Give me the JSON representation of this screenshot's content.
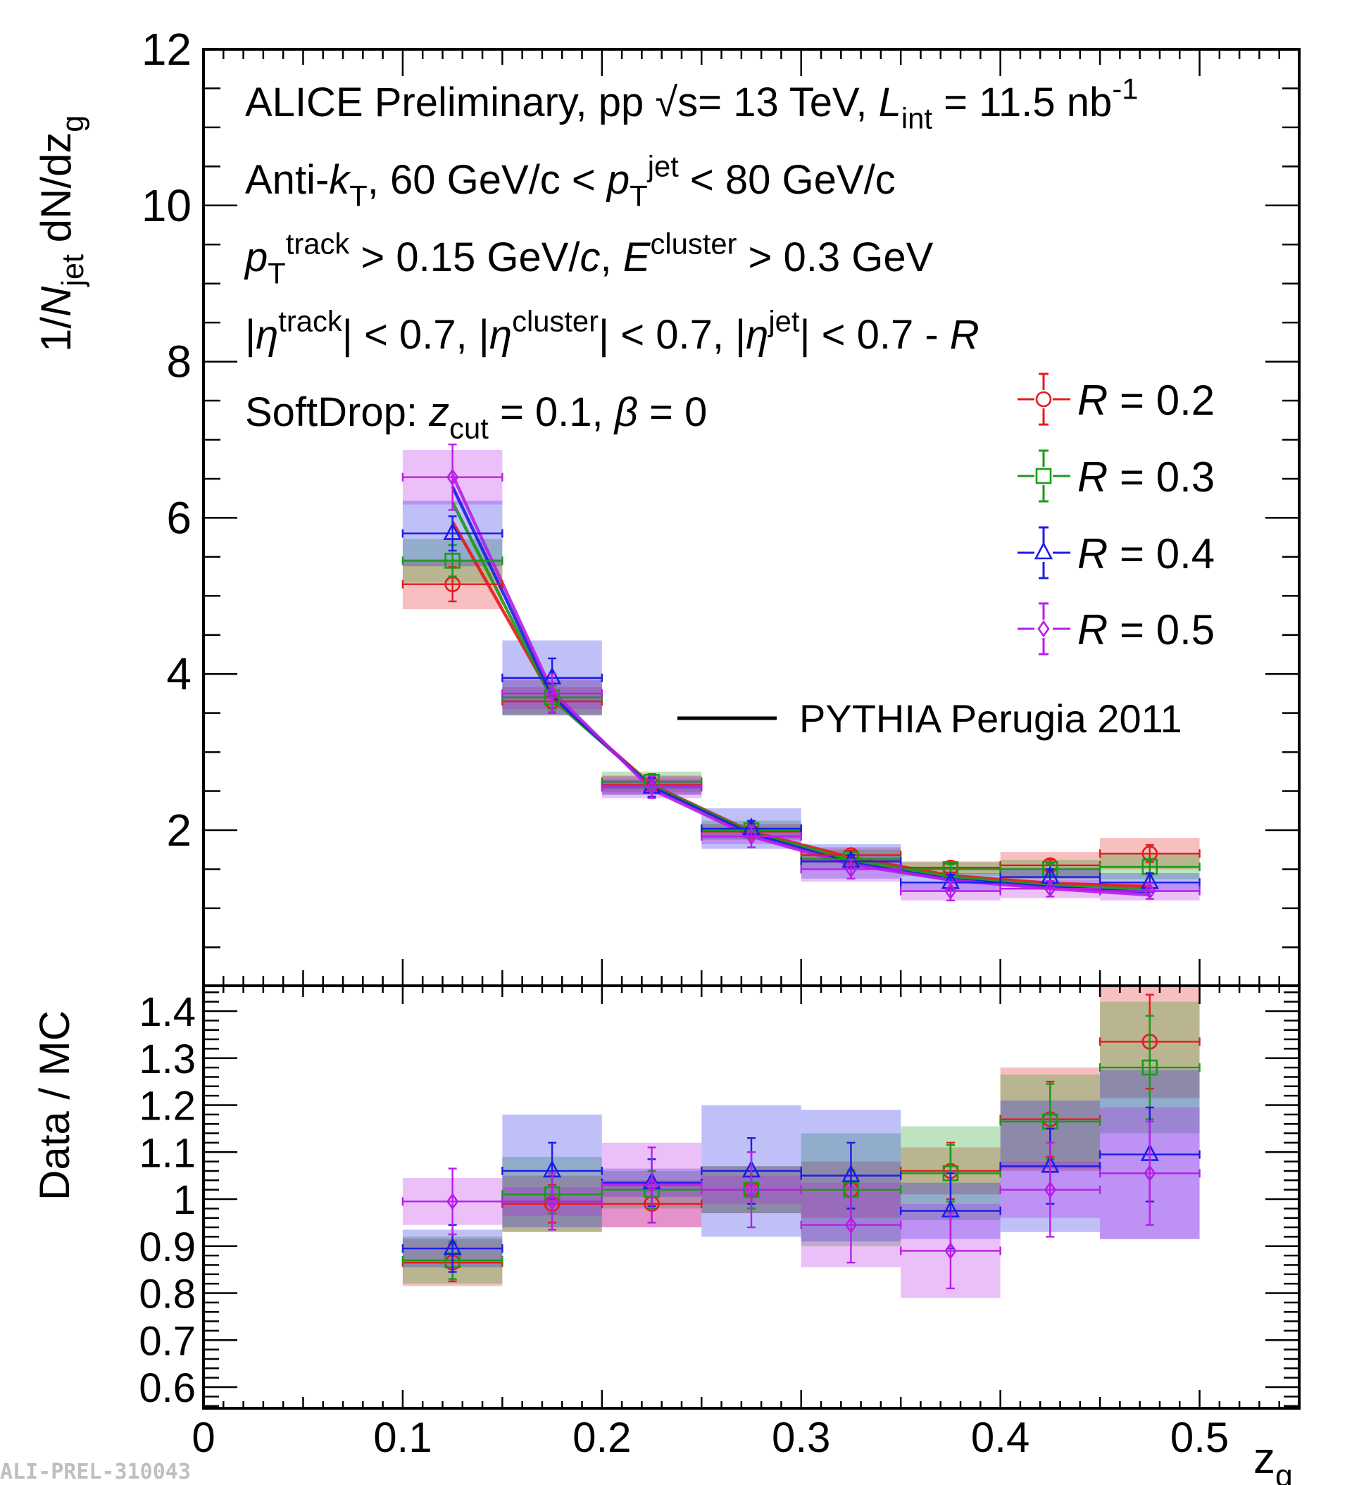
{
  "chart_data": {
    "type": "scatter",
    "title": "",
    "x": [
      0.125,
      0.175,
      0.225,
      0.275,
      0.325,
      0.375,
      0.425,
      0.475
    ],
    "bin_edges": [
      0.1,
      0.15,
      0.2,
      0.25,
      0.3,
      0.35,
      0.4,
      0.45,
      0.5
    ],
    "xlim": [
      0,
      0.55
    ],
    "xlabel_main": "z",
    "xlabel_sub": "g",
    "xticks": [
      "0",
      "0.1",
      "0.2",
      "0.3",
      "0.4",
      "0.5"
    ],
    "top_panel": {
      "ylabel": "1/N_jet dN/dz_g",
      "ylim": [
        0,
        12
      ],
      "yticks": [
        "2",
        "4",
        "6",
        "8",
        "10",
        "12"
      ],
      "annotations": [
        "ALICE Preliminary, pp √s= 13 TeV, L_int = 11.5 nb^-1",
        "Anti-k_T, 60 GeV/c < p_T^jet < 80 GeV/c",
        "p_T^track > 0.15 GeV/c, E^cluster > 0.3 GeV",
        "|η^track| < 0.7, |η^cluster| < 0.7, |η^jet| < 0.7 - R",
        "SoftDrop: z_cut = 0.1, β = 0"
      ],
      "series": [
        {
          "name": "R = 0.2",
          "color": "#e41a1c",
          "marker": "circle",
          "values": [
            5.15,
            3.65,
            2.58,
            1.98,
            1.68,
            1.52,
            1.55,
            1.7
          ],
          "stat_err": [
            0.22,
            0.14,
            0.1,
            0.07,
            0.06,
            0.06,
            0.07,
            0.11
          ],
          "sys_err": [
            0.32,
            0.18,
            0.12,
            0.1,
            0.1,
            0.08,
            0.17,
            0.2
          ],
          "pythia": [
            5.95,
            3.7,
            2.58,
            1.98,
            1.65,
            1.42,
            1.32,
            1.28
          ]
        },
        {
          "name": "R = 0.3",
          "color": "#1a9a1a",
          "marker": "square",
          "values": [
            5.45,
            3.7,
            2.62,
            2.0,
            1.63,
            1.5,
            1.5,
            1.53
          ],
          "stat_err": [
            0.2,
            0.15,
            0.1,
            0.08,
            0.06,
            0.06,
            0.07,
            0.1
          ],
          "sys_err": [
            0.28,
            0.22,
            0.13,
            0.12,
            0.12,
            0.09,
            0.12,
            0.16
          ],
          "pythia": [
            6.2,
            3.68,
            2.57,
            1.97,
            1.62,
            1.4,
            1.29,
            1.24
          ]
        },
        {
          "name": "R = 0.4",
          "color": "#1c1ce8",
          "marker": "triangle",
          "values": [
            5.8,
            3.95,
            2.55,
            2.02,
            1.6,
            1.33,
            1.4,
            1.33
          ],
          "stat_err": [
            0.22,
            0.25,
            0.12,
            0.1,
            0.08,
            0.1,
            0.1,
            0.12
          ],
          "sys_err": [
            0.42,
            0.48,
            0.1,
            0.26,
            0.22,
            0.12,
            0.12,
            0.12
          ],
          "pythia": [
            6.4,
            3.72,
            2.55,
            1.95,
            1.58,
            1.37,
            1.27,
            1.2
          ]
        },
        {
          "name": "R = 0.5",
          "color": "#b81ee8",
          "marker": "diamond",
          "values": [
            6.52,
            3.75,
            2.55,
            1.92,
            1.5,
            1.22,
            1.25,
            1.22
          ],
          "stat_err": [
            0.42,
            0.25,
            0.14,
            0.14,
            0.12,
            0.12,
            0.1,
            0.1
          ],
          "sys_err": [
            0.35,
            0.2,
            0.14,
            0.1,
            0.16,
            0.12,
            0.12,
            0.12
          ],
          "pythia": [
            6.55,
            3.78,
            2.52,
            1.92,
            1.56,
            1.36,
            1.25,
            1.17
          ]
        }
      ],
      "pythia_legend": "PYTHIA Perugia 2011"
    },
    "ratio_panel": {
      "ylabel": "Data / MC",
      "ylim": [
        0.53,
        1.45
      ],
      "yticks": [
        "0.6",
        "0.7",
        "0.8",
        "0.9",
        "1",
        "1.1",
        "1.2",
        "1.3",
        "1.4"
      ],
      "series": [
        {
          "name": "R = 0.2",
          "values": [
            0.865,
            0.99,
            0.99,
            1.02,
            1.02,
            1.06,
            1.17,
            1.335
          ],
          "stat_err": [
            0.04,
            0.04,
            0.04,
            0.04,
            0.04,
            0.06,
            0.08,
            0.1
          ],
          "sys_err": [
            0.05,
            0.06,
            0.05,
            0.05,
            0.06,
            0.05,
            0.11,
            0.12
          ]
        },
        {
          "name": "R = 0.3",
          "values": [
            0.87,
            1.01,
            1.02,
            1.02,
            1.02,
            1.055,
            1.165,
            1.28
          ],
          "stat_err": [
            0.04,
            0.04,
            0.04,
            0.04,
            0.04,
            0.06,
            0.08,
            0.11
          ],
          "sys_err": [
            0.05,
            0.08,
            0.04,
            0.05,
            0.12,
            0.1,
            0.1,
            0.14
          ]
        },
        {
          "name": "R = 0.4",
          "values": [
            0.895,
            1.06,
            1.035,
            1.06,
            1.05,
            0.975,
            1.07,
            1.095
          ],
          "stat_err": [
            0.05,
            0.06,
            0.05,
            0.07,
            0.07,
            0.08,
            0.08,
            0.1
          ],
          "sys_err": [
            0.04,
            0.12,
            0.03,
            0.14,
            0.14,
            0.06,
            0.14,
            0.18
          ]
        },
        {
          "name": "R = 0.5",
          "values": [
            0.995,
            0.995,
            1.03,
            1.02,
            0.945,
            0.89,
            1.02,
            1.055
          ],
          "stat_err": [
            0.07,
            0.06,
            0.08,
            0.08,
            0.08,
            0.08,
            0.1,
            0.11
          ],
          "sys_err": [
            0.05,
            0.03,
            0.09,
            0.03,
            0.09,
            0.1,
            0.06,
            0.14
          ]
        }
      ]
    },
    "legend": [
      "R = 0.2",
      "R = 0.3",
      "R = 0.4",
      "R = 0.5",
      "PYTHIA Perugia 2011"
    ],
    "legend_position": "right",
    "watermark": "ALI-PREL-310043"
  }
}
